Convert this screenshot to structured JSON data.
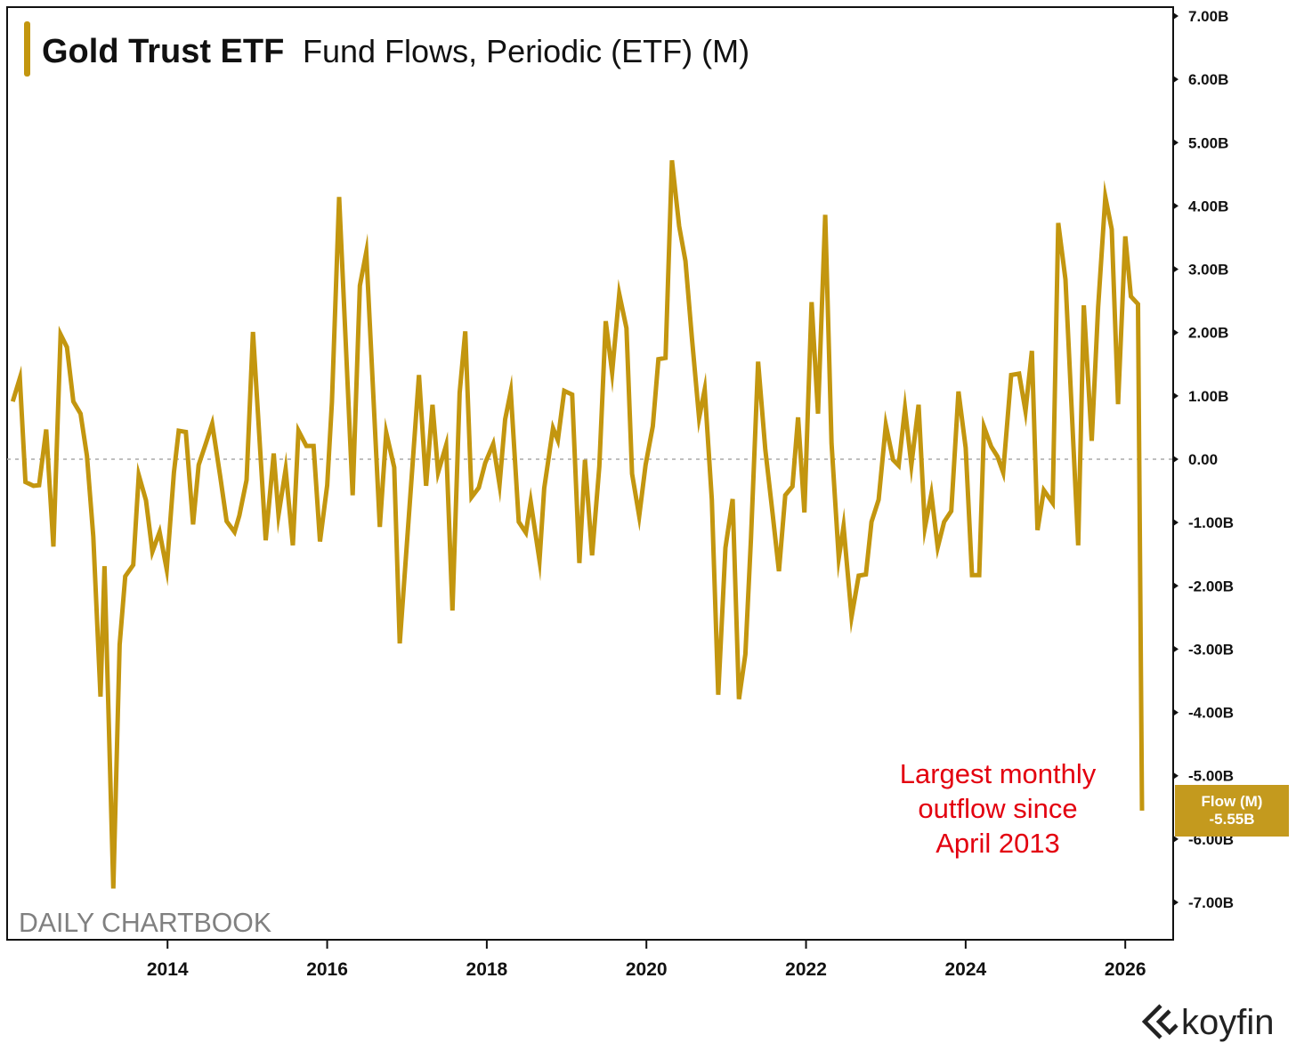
{
  "chart_data": {
    "type": "line",
    "title": "Gold Trust ETF",
    "subtitle": "Fund Flows, Periodic (ETF) (M)",
    "xlabel": "",
    "ylabel": "",
    "xlim": [
      2011.99,
      2026.6
    ],
    "ylim": [
      -7.59,
      7.14
    ],
    "x_ticks": [
      2014,
      2016,
      2018,
      2020,
      2022,
      2024,
      2026
    ],
    "x_tick_labels": [
      "2014",
      "2016",
      "2018",
      "2020",
      "2022",
      "2024",
      "2026"
    ],
    "y_ticks": [
      7,
      6,
      5,
      4,
      3,
      2,
      1,
      0,
      -1,
      -2,
      -3,
      -4,
      -5,
      -6,
      -7
    ],
    "y_tick_labels": [
      "7.00B",
      "6.00B",
      "5.00B",
      "4.00B",
      "3.00B",
      "2.00B",
      "1.00B",
      "0.00",
      "-1.00B",
      "-2.00B",
      "-3.00B",
      "-4.00B",
      "-5.00B",
      "-6.00B",
      "-7.00B"
    ],
    "y_unit": "billions USD",
    "grid": false,
    "zero_line": "dashed",
    "colors": {
      "line": "#C3960F",
      "badge": "#C49A1E",
      "annotation": "#E3000F",
      "axis": "#111111"
    },
    "series": [
      {
        "name": "Flow (M)",
        "last_value_label": "-5.55B",
        "points": [
          [
            2012.06,
            0.91
          ],
          [
            2012.15,
            1.28
          ],
          [
            2012.22,
            -0.36
          ],
          [
            2012.32,
            -0.42
          ],
          [
            2012.39,
            -0.41
          ],
          [
            2012.48,
            0.47
          ],
          [
            2012.57,
            -1.38
          ],
          [
            2012.66,
            1.97
          ],
          [
            2012.74,
            1.77
          ],
          [
            2012.82,
            0.91
          ],
          [
            2012.91,
            0.72
          ],
          [
            2012.99,
            0.05
          ],
          [
            2013.07,
            -1.22
          ],
          [
            2013.16,
            -3.75
          ],
          [
            2013.21,
            -1.69
          ],
          [
            2013.32,
            -6.78
          ],
          [
            2013.4,
            -2.93
          ],
          [
            2013.47,
            -1.85
          ],
          [
            2013.57,
            -1.67
          ],
          [
            2013.64,
            -0.25
          ],
          [
            2013.73,
            -0.65
          ],
          [
            2013.81,
            -1.46
          ],
          [
            2013.9,
            -1.15
          ],
          [
            2013.99,
            -1.74
          ],
          [
            2014.08,
            -0.21
          ],
          [
            2014.14,
            0.45
          ],
          [
            2014.23,
            0.43
          ],
          [
            2014.32,
            -1.03
          ],
          [
            2014.39,
            -0.09
          ],
          [
            2014.48,
            0.25
          ],
          [
            2014.56,
            0.56
          ],
          [
            2014.66,
            -0.27
          ],
          [
            2014.74,
            -0.98
          ],
          [
            2014.84,
            -1.15
          ],
          [
            2014.9,
            -0.89
          ],
          [
            2014.99,
            -0.33
          ],
          [
            2015.07,
            2.01
          ],
          [
            2015.23,
            -1.28
          ],
          [
            2015.33,
            0.09
          ],
          [
            2015.39,
            -0.88
          ],
          [
            2015.48,
            -0.16
          ],
          [
            2015.57,
            -1.36
          ],
          [
            2015.64,
            0.45
          ],
          [
            2015.74,
            0.21
          ],
          [
            2015.83,
            0.21
          ],
          [
            2015.91,
            -1.3
          ],
          [
            2016.0,
            -0.41
          ],
          [
            2016.06,
            0.9
          ],
          [
            2016.15,
            4.14
          ],
          [
            2016.32,
            -0.57
          ],
          [
            2016.41,
            2.74
          ],
          [
            2016.49,
            3.27
          ],
          [
            2016.66,
            -1.07
          ],
          [
            2016.74,
            0.42
          ],
          [
            2016.84,
            -0.13
          ],
          [
            2016.91,
            -2.91
          ],
          [
            2017.15,
            1.33
          ],
          [
            2017.24,
            -0.42
          ],
          [
            2017.32,
            0.86
          ],
          [
            2017.39,
            -0.21
          ],
          [
            2017.49,
            0.22
          ],
          [
            2017.57,
            -2.39
          ],
          [
            2017.66,
            1.05
          ],
          [
            2017.73,
            2.02
          ],
          [
            2017.81,
            -0.6
          ],
          [
            2017.9,
            -0.45
          ],
          [
            2017.98,
            -0.06
          ],
          [
            2018.08,
            0.24
          ],
          [
            2018.16,
            -0.4
          ],
          [
            2018.23,
            0.63
          ],
          [
            2018.3,
            1.07
          ],
          [
            2018.4,
            -0.99
          ],
          [
            2018.49,
            -1.16
          ],
          [
            2018.55,
            -0.67
          ],
          [
            2018.66,
            -1.6
          ],
          [
            2018.72,
            -0.46
          ],
          [
            2018.83,
            0.49
          ],
          [
            2018.89,
            0.3
          ],
          [
            2018.97,
            1.08
          ],
          [
            2019.07,
            1.02
          ],
          [
            2019.16,
            -1.64
          ],
          [
            2019.23,
            -0.01
          ],
          [
            2019.32,
            -1.52
          ],
          [
            2019.41,
            -0.12
          ],
          [
            2019.49,
            2.18
          ],
          [
            2019.57,
            1.37
          ],
          [
            2019.66,
            2.61
          ],
          [
            2019.75,
            2.07
          ],
          [
            2019.82,
            -0.23
          ],
          [
            2019.91,
            -0.9
          ],
          [
            2019.99,
            -0.09
          ],
          [
            2020.08,
            0.52
          ],
          [
            2020.15,
            1.58
          ],
          [
            2020.24,
            1.6
          ],
          [
            2020.32,
            4.72
          ],
          [
            2020.41,
            3.68
          ],
          [
            2020.49,
            3.13
          ],
          [
            2020.57,
            1.92
          ],
          [
            2020.66,
            0.65
          ],
          [
            2020.73,
            1.1
          ],
          [
            2020.82,
            -0.64
          ],
          [
            2020.9,
            -3.72
          ],
          [
            2020.99,
            -1.4
          ],
          [
            2021.08,
            -0.63
          ],
          [
            2021.16,
            -3.79
          ],
          [
            2021.24,
            -3.08
          ],
          [
            2021.31,
            -1.25
          ],
          [
            2021.4,
            1.54
          ],
          [
            2021.49,
            0.15
          ],
          [
            2021.58,
            -0.85
          ],
          [
            2021.66,
            -1.77
          ],
          [
            2021.74,
            -0.57
          ],
          [
            2021.83,
            -0.43
          ],
          [
            2021.9,
            0.66
          ],
          [
            2021.98,
            -0.84
          ],
          [
            2022.07,
            2.48
          ],
          [
            2022.15,
            0.72
          ],
          [
            2022.24,
            3.86
          ],
          [
            2022.32,
            0.25
          ],
          [
            2022.41,
            -1.56
          ],
          [
            2022.47,
            -1.06
          ],
          [
            2022.57,
            -2.49
          ],
          [
            2022.66,
            -1.84
          ],
          [
            2022.75,
            -1.82
          ],
          [
            2022.82,
            -0.99
          ],
          [
            2022.91,
            -0.64
          ],
          [
            2023.0,
            0.54
          ],
          [
            2023.09,
            -0.01
          ],
          [
            2023.16,
            -0.1
          ],
          [
            2023.24,
            0.8
          ],
          [
            2023.32,
            -0.09
          ],
          [
            2023.41,
            0.86
          ],
          [
            2023.49,
            -1.08
          ],
          [
            2023.57,
            -0.55
          ],
          [
            2023.65,
            -1.39
          ],
          [
            2023.73,
            -0.99
          ],
          [
            2023.82,
            -0.82
          ],
          [
            2023.91,
            1.07
          ],
          [
            2024.0,
            0.18
          ],
          [
            2024.08,
            -1.83
          ],
          [
            2024.17,
            -1.83
          ],
          [
            2024.23,
            0.51
          ],
          [
            2024.32,
            0.2
          ],
          [
            2024.4,
            0.04
          ],
          [
            2024.47,
            -0.21
          ],
          [
            2024.57,
            1.33
          ],
          [
            2024.67,
            1.35
          ],
          [
            2024.75,
            0.76
          ],
          [
            2024.83,
            1.71
          ],
          [
            2024.9,
            -1.12
          ],
          [
            2024.98,
            -0.49
          ],
          [
            2025.09,
            -0.69
          ],
          [
            2025.16,
            3.73
          ],
          [
            2025.25,
            2.84
          ],
          [
            2025.41,
            -1.36
          ],
          [
            2025.48,
            2.43
          ],
          [
            2025.58,
            0.29
          ],
          [
            2025.66,
            2.4
          ],
          [
            2025.75,
            4.14
          ],
          [
            2025.83,
            3.63
          ],
          [
            2025.91,
            0.87
          ],
          [
            2026.0,
            3.52
          ],
          [
            2026.07,
            2.57
          ],
          [
            2026.16,
            2.45
          ],
          [
            2026.21,
            -5.55
          ]
        ]
      }
    ],
    "annotations": [
      "Largest monthly",
      "outflow since",
      "April 2013"
    ],
    "legend": "none"
  },
  "watermark": "DAILY CHARTBOOK",
  "brand": "koyfin"
}
